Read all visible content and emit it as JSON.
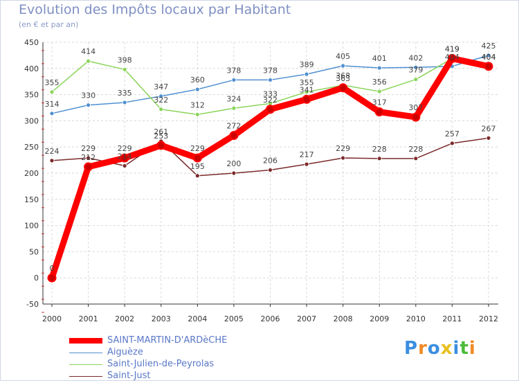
{
  "title": "Evolution des Impôts locaux par Habitant",
  "subtitle": "(en € et par an)",
  "logo": "Proxiti",
  "chart_data": {
    "type": "line",
    "x": [
      "2000",
      "2001",
      "2002",
      "2003",
      "2004",
      "2005",
      "2006",
      "2007",
      "2008",
      "2009",
      "2010",
      "2011",
      "2012"
    ],
    "ylim": [
      -50,
      450
    ],
    "yticks": [
      -50,
      0,
      50,
      100,
      150,
      200,
      250,
      300,
      350,
      400,
      450
    ],
    "grid": true,
    "legend_position": "bottom-left",
    "series": [
      {
        "name": "Saint-Just",
        "color": "#7b2a2a",
        "values": [
          224,
          229,
          214,
          261,
          195,
          200,
          206,
          217,
          229,
          228,
          228,
          257,
          267
        ],
        "labels": [
          "224",
          "229",
          "214",
          "261",
          "195",
          "200",
          "206",
          "217",
          "229",
          "228",
          "228",
          "257",
          "267"
        ]
      },
      {
        "name": "Aiguèze",
        "color": "#4f8fd0",
        "values": [
          314,
          330,
          335,
          347,
          360,
          378,
          378,
          389,
          405,
          401,
          402,
          404,
          425
        ],
        "labels": [
          "314",
          "330",
          "335",
          "347",
          "360",
          "378",
          "378",
          "389",
          "405",
          "401",
          "402",
          "404",
          "425"
        ]
      },
      {
        "name": "Saint-Julien-de-Peyrolas",
        "color": "#8ad45a",
        "values": [
          355,
          414,
          398,
          322,
          312,
          324,
          333,
          355,
          368,
          356,
          379,
          419,
          404
        ],
        "labels": [
          "355",
          "414",
          "398",
          "322",
          "312",
          "324",
          "333",
          "355",
          "368",
          "356",
          "379",
          "419",
          "404"
        ]
      },
      {
        "name": "SAINT-MARTIN-D'ARDèCHE",
        "color": "#ff0000",
        "values": [
          0,
          212,
          229,
          253,
          229,
          272,
          322,
          341,
          363,
          317,
          307,
          419,
          404
        ],
        "labels": [
          "0",
          "212",
          "229",
          "253",
          "229",
          "272",
          "322",
          "341",
          "363",
          "317",
          "307",
          "419",
          "404"
        ]
      }
    ]
  }
}
